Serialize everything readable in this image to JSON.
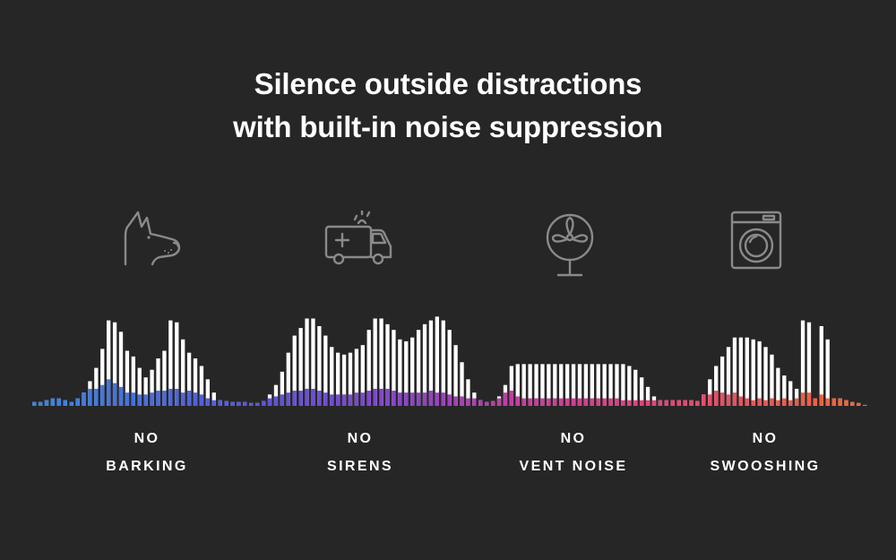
{
  "headline": {
    "line1": "Silence outside distractions",
    "line2": "with built-in noise suppression"
  },
  "colors": {
    "background": "#262626",
    "noise_bar": "#ffffff",
    "icon_stroke": "#8a8a8a",
    "gradient": [
      "#3a86e0",
      "#5a55d8",
      "#8a44c8",
      "#c13fa0",
      "#e3427a",
      "#f06a35"
    ]
  },
  "categories": [
    {
      "icon": "dog-icon",
      "label_line1": "NO",
      "label_line2": "BARKING"
    },
    {
      "icon": "ambulance-icon",
      "label_line1": "NO",
      "label_line2": "SIRENS"
    },
    {
      "icon": "fan-icon",
      "label_line1": "NO",
      "label_line2": "VENT NOISE"
    },
    {
      "icon": "washing-machine-icon",
      "label_line1": "NO",
      "label_line2": "SWOOSHING"
    }
  ],
  "waveform": {
    "levels_noise": [
      4,
      4,
      6,
      8,
      8,
      6,
      4,
      8,
      14,
      26,
      40,
      60,
      90,
      88,
      78,
      58,
      52,
      40,
      30,
      38,
      50,
      58,
      90,
      88,
      70,
      56,
      50,
      42,
      28,
      14,
      6,
      5,
      4,
      4,
      4,
      3,
      3,
      5,
      12,
      22,
      36,
      56,
      74,
      82,
      92,
      92,
      84,
      74,
      62,
      56,
      54,
      56,
      60,
      64,
      80,
      92,
      92,
      86,
      80,
      70,
      68,
      72,
      80,
      86,
      90,
      94,
      90,
      80,
      64,
      46,
      28,
      14,
      6,
      4,
      5,
      10,
      22,
      42,
      44,
      44,
      44,
      44,
      44,
      44,
      44,
      44,
      44,
      44,
      44,
      44,
      44,
      44,
      44,
      44,
      44,
      44,
      42,
      38,
      30,
      20,
      10,
      6,
      6,
      6,
      6,
      6,
      6,
      5,
      12,
      28,
      42,
      52,
      62,
      72,
      72,
      72,
      70,
      68,
      62,
      54,
      40,
      32,
      26,
      18,
      90,
      88,
      8,
      84,
      70,
      8,
      8,
      6,
      4,
      3,
      1
    ],
    "levels_voice": [
      4,
      4,
      6,
      8,
      8,
      6,
      4,
      8,
      14,
      18,
      18,
      22,
      28,
      24,
      20,
      14,
      14,
      12,
      12,
      14,
      16,
      16,
      18,
      18,
      14,
      16,
      14,
      12,
      8,
      6,
      6,
      5,
      4,
      4,
      4,
      3,
      3,
      5,
      8,
      10,
      12,
      14,
      16,
      16,
      18,
      18,
      16,
      14,
      12,
      12,
      12,
      12,
      14,
      14,
      16,
      18,
      18,
      18,
      16,
      14,
      14,
      14,
      14,
      14,
      16,
      14,
      14,
      12,
      10,
      10,
      8,
      8,
      6,
      4,
      5,
      8,
      14,
      16,
      10,
      8,
      8,
      8,
      8,
      8,
      8,
      8,
      8,
      8,
      8,
      8,
      8,
      8,
      8,
      8,
      8,
      6,
      6,
      6,
      6,
      6,
      6,
      6,
      6,
      6,
      6,
      6,
      6,
      5,
      12,
      12,
      16,
      14,
      12,
      14,
      10,
      8,
      6,
      8,
      6,
      8,
      6,
      8,
      6,
      8,
      14,
      14,
      8,
      12,
      8,
      8,
      8,
      6,
      4,
      3,
      1
    ]
  }
}
